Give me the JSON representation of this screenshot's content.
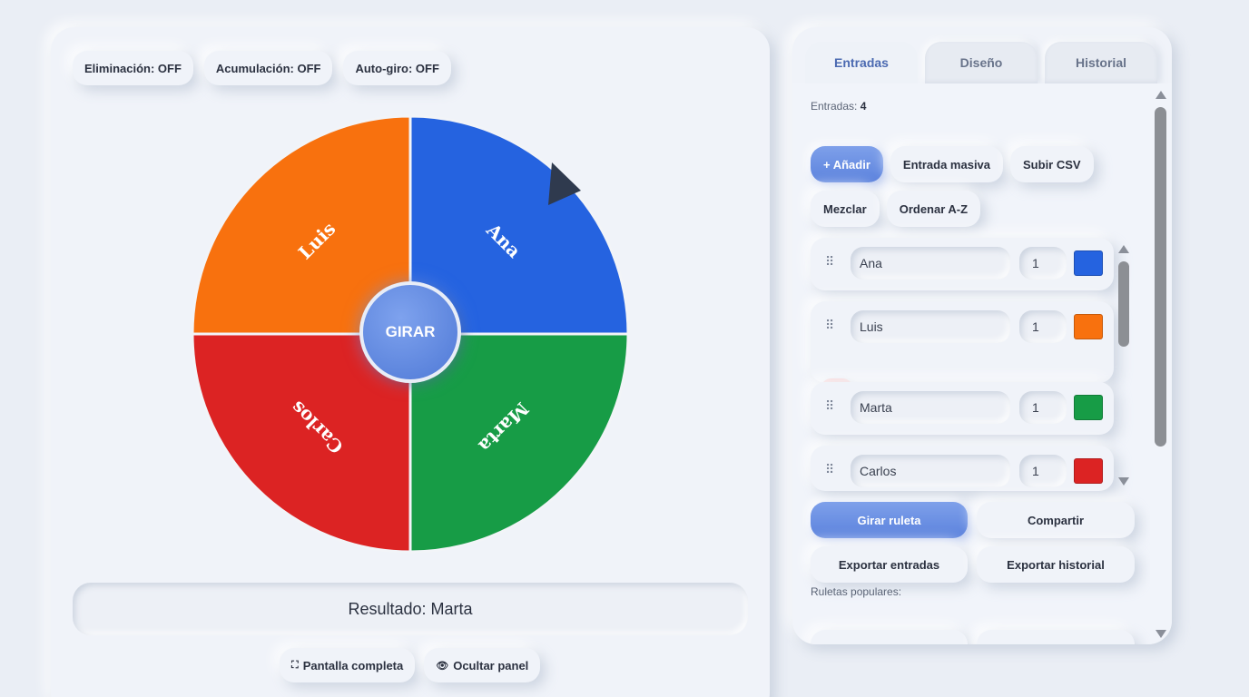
{
  "toggles": [
    {
      "label": "Eliminación: OFF"
    },
    {
      "label": "Acumulación: OFF"
    },
    {
      "label": "Auto-giro: OFF"
    }
  ],
  "wheel": {
    "spin_label": "GIRAR",
    "segments": [
      {
        "name": "Ana",
        "color": "#2563e0"
      },
      {
        "name": "Marta",
        "color": "#179c46"
      },
      {
        "name": "Carlos",
        "color": "#dc2323"
      },
      {
        "name": "Luis",
        "color": "#f8710e"
      }
    ],
    "pointer_color": "#2f3a4e"
  },
  "result_text": "Resultado: Marta",
  "bottom_actions": {
    "fullscreen": {
      "icon": "⛶",
      "label": "Pantalla completa"
    },
    "hide_panel": {
      "icon": "👁",
      "label": "Ocultar panel"
    }
  },
  "tabs": [
    {
      "label": "Entradas",
      "active": true
    },
    {
      "label": "Diseño",
      "active": false
    },
    {
      "label": "Historial",
      "active": false
    }
  ],
  "entries_count": {
    "label": "Entradas:",
    "value": "4"
  },
  "entry_actions": {
    "add": "+ Añadir",
    "bulk": "Entrada masiva",
    "upload_csv": "Subir CSV",
    "shuffle": "Mezclar",
    "sort": "Ordenar A-Z"
  },
  "entries": [
    {
      "name": "Ana",
      "weight": "1",
      "color": "#2563e0"
    },
    {
      "name": "Luis",
      "weight": "1",
      "color": "#f8710e"
    },
    {
      "name": "Marta",
      "weight": "1",
      "color": "#179c46"
    },
    {
      "name": "Carlos",
      "weight": "1",
      "color": "#dc2323"
    }
  ],
  "delete_glyph": "✕",
  "panel_actions": {
    "spin": "Girar ruleta",
    "share": "Compartir",
    "export_entries": "Exportar entradas",
    "export_history": "Exportar historial"
  },
  "popular_label": "Ruletas populares:"
}
